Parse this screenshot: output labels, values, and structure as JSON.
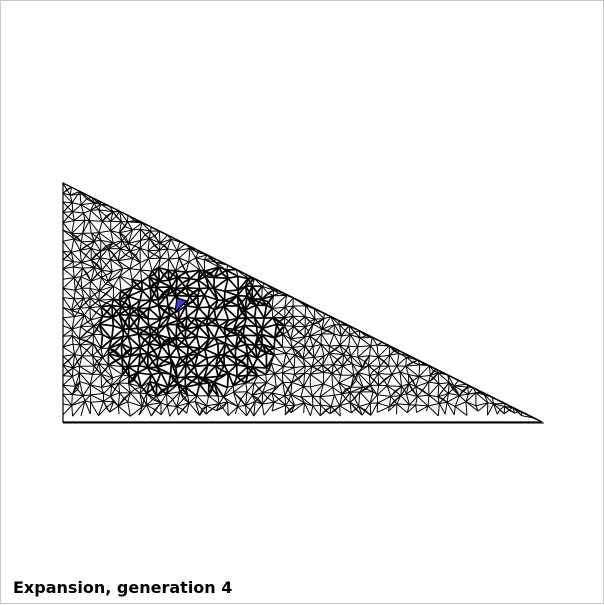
{
  "caption": {
    "text": "Expansion, generation 4"
  },
  "colors": {
    "background": "#ffffff",
    "mesh_line": "#000000",
    "highlight_fill": "#3a3ad6",
    "frame_border": "#c8c8c8"
  }
}
